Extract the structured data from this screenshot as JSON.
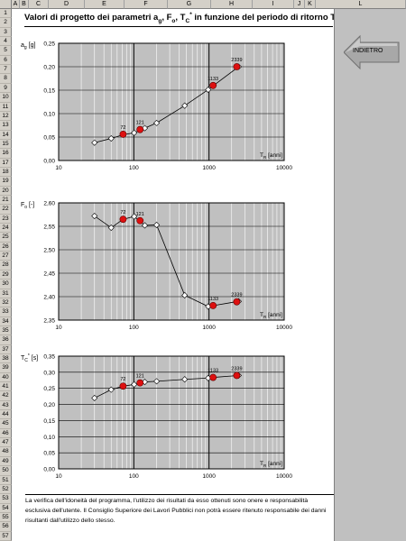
{
  "columns": [
    "A",
    "B",
    "C",
    "D",
    "E",
    "F",
    "G",
    "H",
    "I",
    "J",
    "K",
    "L"
  ],
  "rows": [
    "1",
    "2",
    "3",
    "4",
    "5",
    "6",
    "7",
    "8",
    "9",
    "10",
    "11",
    "12",
    "13",
    "14",
    "15",
    "16",
    "17",
    "18",
    "19",
    "20",
    "21",
    "22",
    "23",
    "24",
    "25",
    "26",
    "27",
    "28",
    "29",
    "30",
    "31",
    "32",
    "33",
    "34",
    "35",
    "36",
    "37",
    "38",
    "39",
    "40",
    "41",
    "42",
    "43",
    "44",
    "45",
    "46",
    "47",
    "48",
    "49",
    "50",
    "51",
    "52",
    "53",
    "54",
    "55",
    "56",
    "57"
  ],
  "title": "Valori di progetto dei parametri a₉, F₀, Tᶜ* in funzione del periodo di ritorno Tᴿ",
  "title_parts": {
    "a": "Valori di progetto dei parametri a",
    "a_sub": "g",
    "b": ", F",
    "b_sub": "o",
    "c": ", T",
    "c_sub": "C",
    "c_sup": "*",
    "d": " in funzione del periodo di ritorno T",
    "d_sub": "R"
  },
  "back_button_label": "INDIETRO",
  "footnote": "La verifica dell'idoneità del programma, l'utilizzo dei risultati da esso ottenuti sono onere e responsabilità esclusiva dell'utente. Il Consiglio Superiore dei Lavori Pubblici non potrà essere ritenuto responsabile dei danni risultanti dall'utilizzo dello stesso.",
  "colors": {
    "white_marker": "#ffffff",
    "red_marker": "#dd1010",
    "plot_bg": "#c0c0c0",
    "line": "#000000"
  },
  "chart_data": [
    {
      "type": "scatter",
      "ylabel": "a",
      "ylabel_sub": "g",
      "ylabel_unit": " [g]",
      "xlabel": "T",
      "xlabel_sub": "R",
      "xlabel_unit": " [anni]",
      "xscale": "log",
      "xlim": [
        10,
        10000
      ],
      "xticks": [
        "10",
        "100",
        "1000",
        "10000"
      ],
      "ylim": [
        0,
        0.25
      ],
      "yticks": [
        "0,00",
        "0,05",
        "0,10",
        "0,15",
        "0,20",
        "0,25"
      ],
      "grid": true,
      "series": [
        {
          "x": [
            30,
            50,
            72,
            101,
            140,
            201,
            475,
            975,
            1150,
            2475
          ],
          "y": [
            0.038,
            0.047,
            0.055,
            0.059,
            0.069,
            0.08,
            0.117,
            0.151,
            0.16,
            0.2
          ]
        }
      ],
      "highlight": {
        "x": [
          72,
          121,
          1133,
          2339
        ],
        "y": [
          0.056,
          0.066,
          0.16,
          0.2
        ],
        "labels": [
          "72",
          "121",
          "1133",
          "2339"
        ]
      }
    },
    {
      "type": "scatter",
      "ylabel": "F",
      "ylabel_sub": "o",
      "ylabel_unit": " [-]",
      "xlabel": "T",
      "xlabel_sub": "R",
      "xlabel_unit": " [anni]",
      "xscale": "log",
      "xlim": [
        10,
        10000
      ],
      "xticks": [
        "10",
        "100",
        "1000",
        "10000"
      ],
      "ylim": [
        2.35,
        2.6
      ],
      "yticks": [
        "2,35",
        "2,40",
        "2,45",
        "2,50",
        "2,55",
        "2,60"
      ],
      "grid": true,
      "series": [
        {
          "x": [
            30,
            50,
            72,
            101,
            140,
            201,
            475,
            975,
            1150,
            2475
          ],
          "y": [
            2.572,
            2.547,
            2.565,
            2.571,
            2.552,
            2.553,
            2.403,
            2.379,
            2.381,
            2.39
          ]
        }
      ],
      "highlight": {
        "x": [
          72,
          121,
          1133,
          2339
        ],
        "y": [
          2.565,
          2.562,
          2.381,
          2.389
        ],
        "labels": [
          "72",
          "121",
          "1133",
          "2339"
        ]
      }
    },
    {
      "type": "scatter",
      "ylabel": "T",
      "ylabel_sub": "C",
      "ylabel_sup": "*",
      "ylabel_unit": " [s]",
      "xlabel": "T",
      "xlabel_sub": "R",
      "xlabel_unit": " [anni]",
      "xscale": "log",
      "xlim": [
        10,
        10000
      ],
      "xticks": [
        "10",
        "100",
        "1000",
        "10000"
      ],
      "ylim": [
        0,
        0.35
      ],
      "yticks": [
        "0,00",
        "0,05",
        "0,10",
        "0,15",
        "0,20",
        "0,25",
        "0,30",
        "0,35"
      ],
      "grid": true,
      "series": [
        {
          "x": [
            30,
            50,
            72,
            101,
            140,
            201,
            475,
            975,
            1150,
            2475
          ],
          "y": [
            0.22,
            0.246,
            0.257,
            0.262,
            0.27,
            0.272,
            0.278,
            0.282,
            0.284,
            0.29
          ]
        }
      ],
      "highlight": {
        "x": [
          72,
          121,
          1133,
          2339
        ],
        "y": [
          0.257,
          0.267,
          0.284,
          0.29
        ],
        "labels": [
          "72",
          "121",
          "1133",
          "2339"
        ]
      }
    }
  ]
}
